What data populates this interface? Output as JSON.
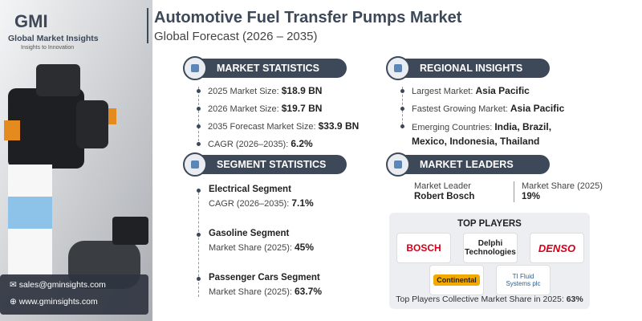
{
  "logo": {
    "mark": "GMI",
    "name": "Global Market Insights",
    "tagline": "Insights to Innovation"
  },
  "header": {
    "title": "Automotive Fuel Transfer Pumps Market",
    "subtitle": "Global Forecast (2026 – 2035)"
  },
  "market_statistics": {
    "heading": "MARKET STATISTICS",
    "items": [
      {
        "label": "2025 Market Size:",
        "value": "$18.9 BN"
      },
      {
        "label": "2026 Market Size:",
        "value": "$19.7 BN"
      },
      {
        "label": "2035 Forecast Market Size:",
        "value": "$33.9 BN"
      },
      {
        "label": "CAGR (2026–2035):",
        "value": "6.2%"
      }
    ]
  },
  "regional_insights": {
    "heading": "REGIONAL INSIGHTS",
    "items": [
      {
        "label": "Largest Market:",
        "value": "Asia Pacific"
      },
      {
        "label": "Fastest Growing Market:",
        "value": "Asia Pacific"
      },
      {
        "label": "Emerging Countries:",
        "value": "India, Brazil, Mexico, Indonesia, Thailand"
      }
    ]
  },
  "segment_statistics": {
    "heading": "SEGMENT STATISTICS",
    "items": [
      {
        "segment": "Electrical Segment",
        "label": "CAGR (2026–2035):",
        "value": "7.1%"
      },
      {
        "segment": "Gasoline Segment",
        "label": "Market Share (2025):",
        "value": "45%"
      },
      {
        "segment": "Passenger Cars Segment",
        "label": "Market Share (2025):",
        "value": "63.7%"
      }
    ]
  },
  "market_leaders": {
    "heading": "MARKET LEADERS",
    "leader_label": "Market Leader",
    "leader": "Robert Bosch",
    "share_label": "Market Share (2025)",
    "share": "19%"
  },
  "top_players": {
    "heading": "TOP PLAYERS",
    "players": [
      "BOSCH",
      "Delphi Technologies",
      "DENSO",
      "Continental",
      "TI Fluid Systems plc"
    ],
    "footer_label": "Top Players Collective Market Share in 2025:",
    "footer_value": "63%"
  },
  "contact": {
    "email": "sales@gminsights.com",
    "website": "www.gminsights.com"
  }
}
